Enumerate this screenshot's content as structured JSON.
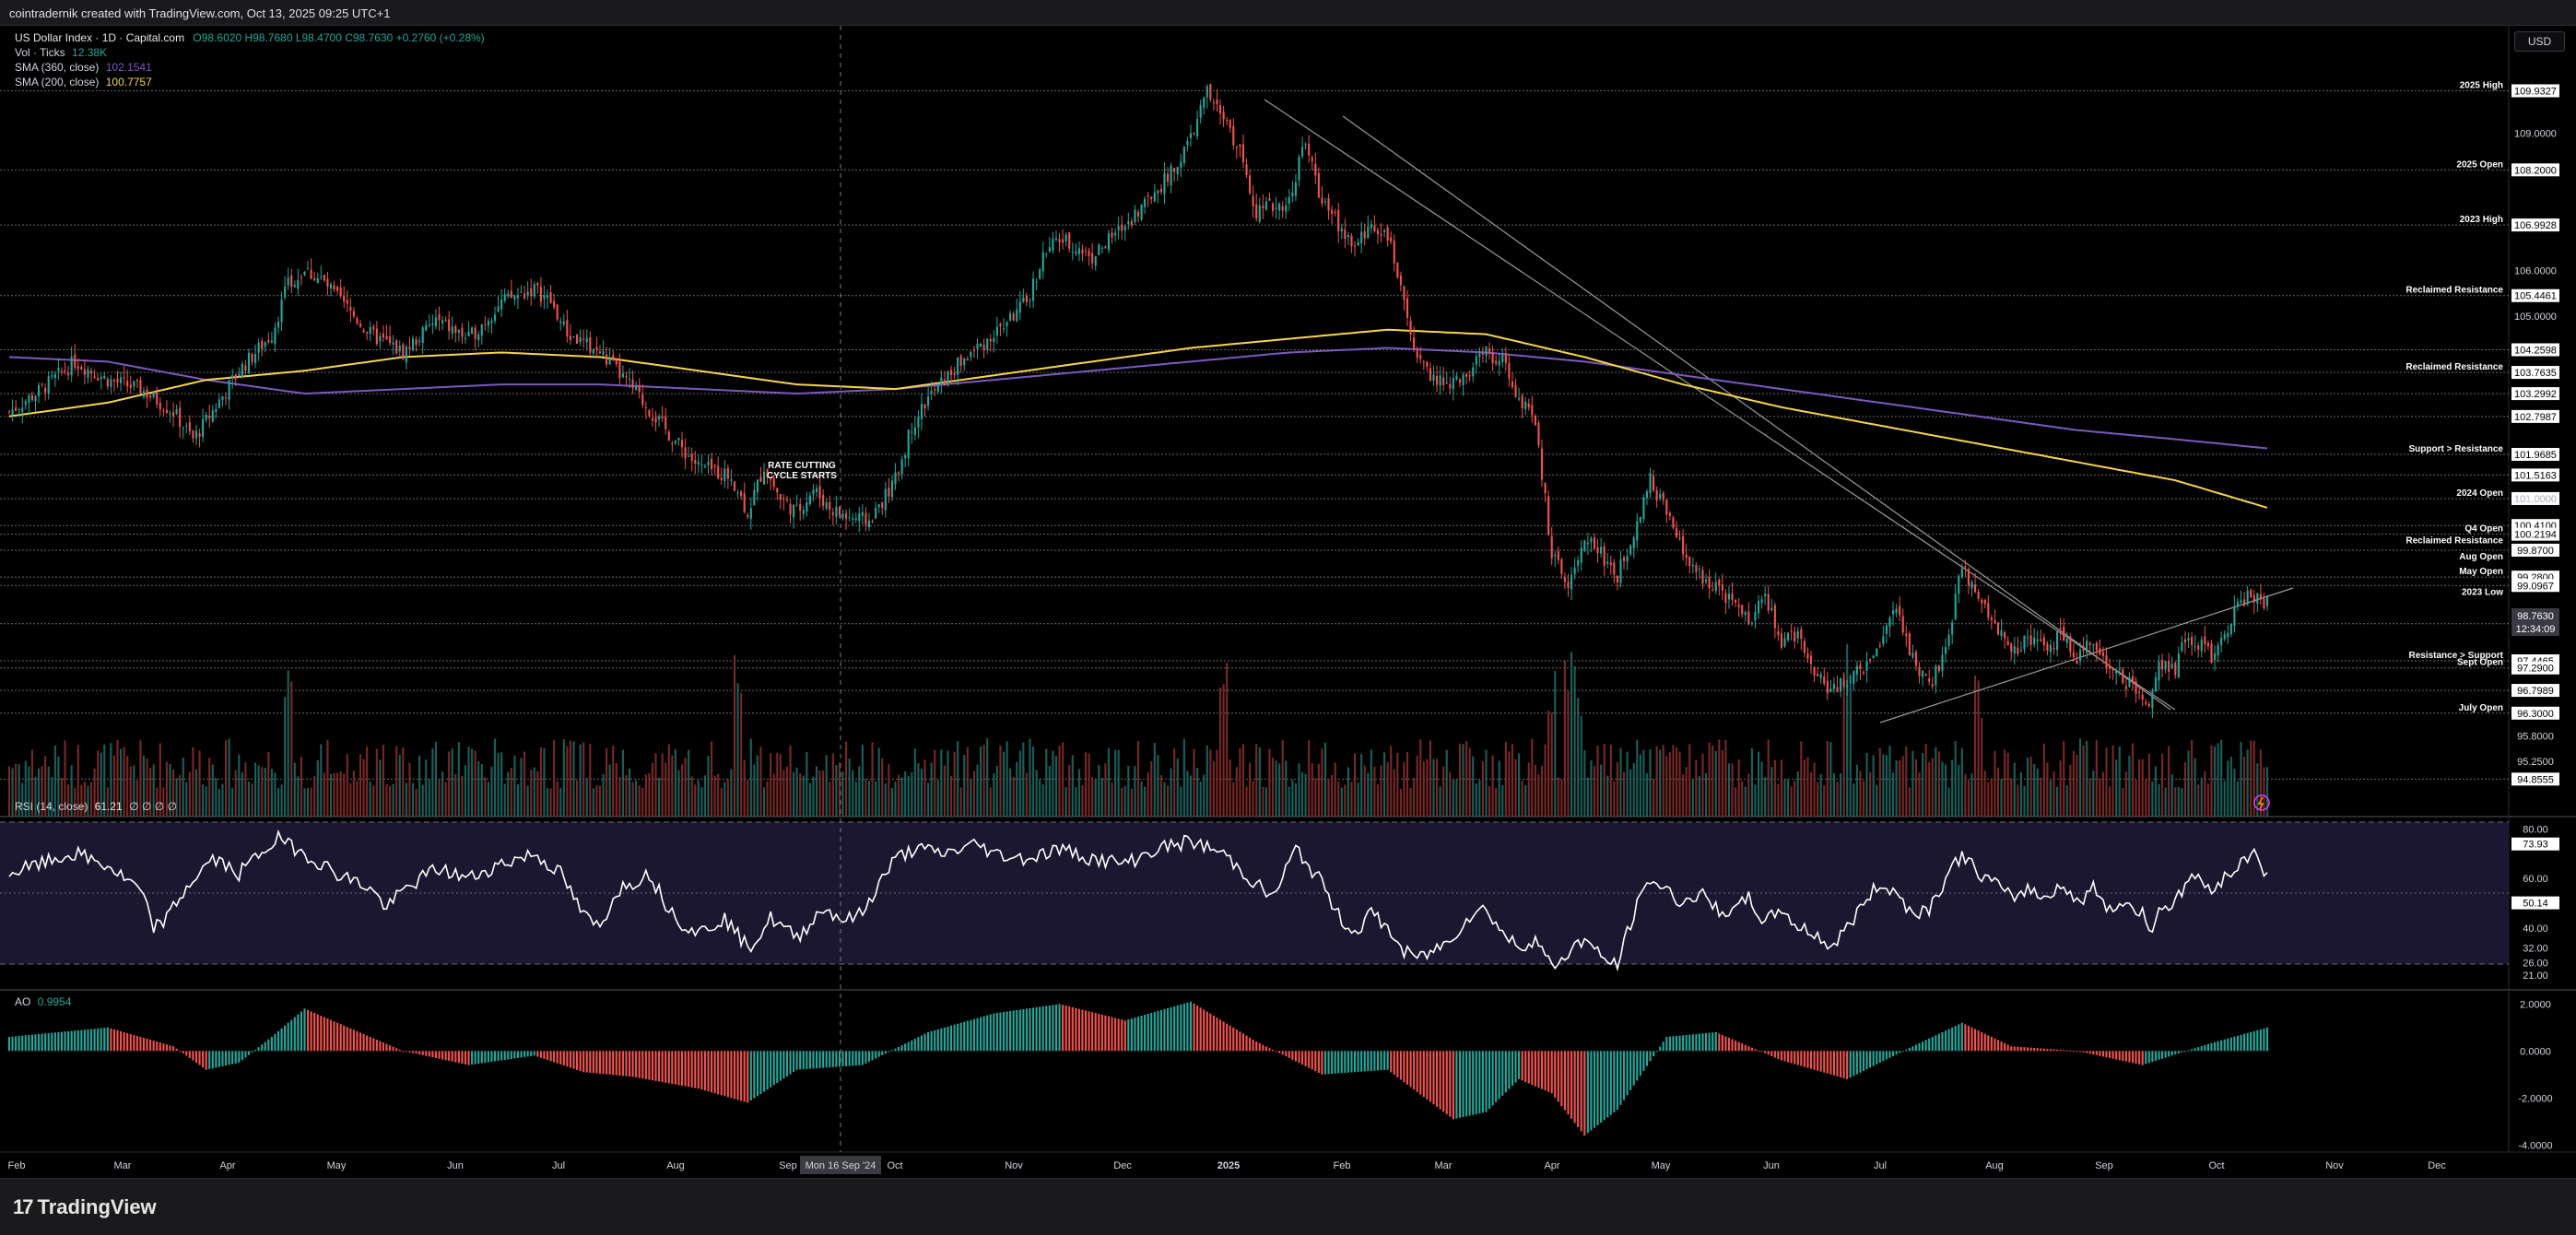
{
  "header": {
    "credit": "cointradernik created with TradingView.com, Oct 13, 2025 09:25 UTC+1"
  },
  "legend": {
    "symbol": "US Dollar Index · 1D · Capital.com",
    "ohlc": "O98.6020 H98.7680 L98.4700 C98.7630 +0.2760 (+0.28%)",
    "volume_label": "Vol · Ticks",
    "volume_value": "12.38K",
    "sma360_label": "SMA (360, close)",
    "sma360_value": "102.1541",
    "sma200_label": "SMA (200, close)",
    "sma200_value": "100.7757",
    "rsi_label": "RSI (14, close)",
    "rsi_value": "61.21",
    "rsi_extra": "∅ ∅ ∅ ∅",
    "ao_label": "AO",
    "ao_value": "0.9954"
  },
  "currency_button": "USD",
  "crosshair_label": "Mon 16 Sep '24",
  "footer": {
    "brand": "TradingView"
  },
  "colors": {
    "up": "#26a69a",
    "down": "#ef5350",
    "sma200": "#f6d54a",
    "sma360": "#7e57c2",
    "rsi_band": "#1b1730",
    "tag_bg": "#ffffff",
    "tag_text": "#000000"
  },
  "chart_data": {
    "type": "candlestick",
    "symbol": "US Dollar Index",
    "timeframe": "1D",
    "x_axis_labels": [
      "Feb",
      "Mar",
      "Apr",
      "May",
      "Jun",
      "Jul",
      "Aug",
      "Sep",
      "Oct",
      "Nov",
      "Dec",
      "2025",
      "Feb",
      "Mar",
      "Apr",
      "May",
      "Jun",
      "Jul",
      "Aug",
      "Sep",
      "Oct",
      "Nov",
      "Dec"
    ],
    "price_axis": {
      "ylim": [
        94.6,
        110.75
      ],
      "ticks": [
        "109.0000",
        "106.0000",
        "105.0000",
        "101.0000",
        "95.8000",
        "95.2500"
      ]
    },
    "price_levels": [
      {
        "label": "2025 High",
        "value": "109.9327"
      },
      {
        "label": "2025 Open",
        "value": "108.2000"
      },
      {
        "label": "2023 High",
        "value": "106.9928"
      },
      {
        "label": "Reclaimed Resistance",
        "value": "105.4461"
      },
      {
        "label": "",
        "value": "104.2598"
      },
      {
        "label": "Reclaimed Resistance",
        "value": "103.7635"
      },
      {
        "label": "",
        "value": "103.2992"
      },
      {
        "label": "",
        "value": "102.7987"
      },
      {
        "label": "Support > Resistance",
        "value": "101.9685"
      },
      {
        "label": "",
        "value": "101.5163"
      },
      {
        "label": "2024 Open",
        "value": "101.0000"
      },
      {
        "label": "",
        "value": "100.4100"
      },
      {
        "label": "Q4 Open",
        "value": "100.2194"
      },
      {
        "label": "Reclaimed Resistance",
        "value": ""
      },
      {
        "label": "",
        "value": "99.8700"
      },
      {
        "label": "Aug Open",
        "value": ""
      },
      {
        "label": "May Open",
        "value": "99.2800"
      },
      {
        "label": "",
        "value": "99.0967"
      },
      {
        "label": "2023 Low",
        "value": ""
      },
      {
        "label": "",
        "value": "98.2579"
      },
      {
        "label": "Resistance > Support",
        "value": "97.4465"
      },
      {
        "label": "Sept Open",
        "value": "97.2900"
      },
      {
        "label": "",
        "value": "96.7989"
      },
      {
        "label": "July Open",
        "value": "96.3000"
      },
      {
        "label": "",
        "value": "94.8555"
      }
    ],
    "last_price": "98.7630",
    "last_price_countdown": "12:34:09",
    "annotation": "RATE CUTTING\nCYCLE STARTS",
    "indicators": {
      "sma200_last": 100.7757,
      "sma360_last": 102.1541,
      "rsi": {
        "period": 14,
        "last": 61.21,
        "upper": 73.93,
        "mid": 50.14,
        "ticks": [
          "80.00",
          "60.00",
          "40.00",
          "32.00",
          "26.00",
          "21.00"
        ]
      },
      "ao": {
        "last": 0.9954,
        "ticks": [
          "2.0000",
          "0.0000",
          "-2.0000",
          "-4.0000"
        ]
      }
    },
    "price_path": [
      [
        0,
        102.9
      ],
      [
        10,
        103.4
      ],
      [
        20,
        104.0
      ],
      [
        30,
        103.6
      ],
      [
        40,
        103.4
      ],
      [
        50,
        102.9
      ],
      [
        56,
        102.3
      ],
      [
        60,
        102.7
      ],
      [
        70,
        103.8
      ],
      [
        80,
        104.6
      ],
      [
        85,
        105.7
      ],
      [
        90,
        106.0
      ],
      [
        95,
        105.8
      ],
      [
        100,
        105.4
      ],
      [
        110,
        104.6
      ],
      [
        120,
        104.2
      ],
      [
        130,
        104.9
      ],
      [
        140,
        104.5
      ],
      [
        150,
        105.3
      ],
      [
        160,
        105.6
      ],
      [
        165,
        105.3
      ],
      [
        170,
        104.6
      ],
      [
        180,
        104.2
      ],
      [
        190,
        103.4
      ],
      [
        200,
        102.5
      ],
      [
        210,
        101.7
      ],
      [
        220,
        101.5
      ],
      [
        225,
        100.7
      ],
      [
        230,
        101.7
      ],
      [
        235,
        101.0
      ],
      [
        240,
        100.7
      ],
      [
        245,
        101.2
      ],
      [
        250,
        100.8
      ],
      [
        255,
        100.6
      ],
      [
        262,
        100.5
      ],
      [
        270,
        101.4
      ],
      [
        275,
        102.6
      ],
      [
        280,
        103.2
      ],
      [
        290,
        104.0
      ],
      [
        300,
        104.6
      ],
      [
        310,
        105.3
      ],
      [
        315,
        106.3
      ],
      [
        320,
        106.7
      ],
      [
        330,
        106.3
      ],
      [
        340,
        107.0
      ],
      [
        350,
        107.8
      ],
      [
        355,
        108.2
      ],
      [
        360,
        108.9
      ],
      [
        365,
        109.9
      ],
      [
        370,
        109.3
      ],
      [
        375,
        108.6
      ],
      [
        380,
        107.3
      ],
      [
        390,
        107.5
      ],
      [
        393,
        108.4
      ],
      [
        395,
        108.8
      ],
      [
        400,
        107.5
      ],
      [
        405,
        107.0
      ],
      [
        410,
        106.5
      ],
      [
        415,
        107.0
      ],
      [
        420,
        106.8
      ],
      [
        425,
        105.2
      ],
      [
        430,
        103.9
      ],
      [
        435,
        103.6
      ],
      [
        440,
        103.5
      ],
      [
        445,
        103.8
      ],
      [
        450,
        104.2
      ],
      [
        455,
        104.0
      ],
      [
        460,
        103.2
      ],
      [
        465,
        102.6
      ],
      [
        468,
        101.0
      ],
      [
        470,
        99.7
      ],
      [
        475,
        99.2
      ],
      [
        480,
        100.2
      ],
      [
        485,
        99.8
      ],
      [
        490,
        99.3
      ],
      [
        495,
        100.3
      ],
      [
        500,
        101.4
      ],
      [
        505,
        100.7
      ],
      [
        510,
        99.8
      ],
      [
        515,
        99.3
      ],
      [
        520,
        99.1
      ],
      [
        525,
        98.7
      ],
      [
        530,
        98.3
      ],
      [
        535,
        98.9
      ],
      [
        540,
        97.8
      ],
      [
        545,
        98.1
      ],
      [
        550,
        97.2
      ],
      [
        555,
        96.8
      ],
      [
        560,
        97.0
      ],
      [
        565,
        97.3
      ],
      [
        570,
        97.8
      ],
      [
        575,
        98.6
      ],
      [
        580,
        97.5
      ],
      [
        585,
        96.9
      ],
      [
        590,
        97.6
      ],
      [
        595,
        99.6
      ],
      [
        600,
        98.7
      ],
      [
        605,
        98.3
      ],
      [
        610,
        97.6
      ],
      [
        615,
        98.0
      ],
      [
        620,
        97.7
      ],
      [
        625,
        98.0
      ],
      [
        630,
        97.5
      ],
      [
        635,
        97.9
      ],
      [
        640,
        97.3
      ],
      [
        645,
        97.0
      ],
      [
        650,
        96.7
      ],
      [
        652,
        96.4
      ],
      [
        655,
        97.4
      ],
      [
        660,
        97.2
      ],
      [
        663,
        98.0
      ],
      [
        668,
        97.8
      ],
      [
        672,
        97.5
      ],
      [
        676,
        98.2
      ],
      [
        680,
        98.8
      ],
      [
        685,
        98.9
      ],
      [
        688,
        98.7
      ]
    ],
    "sma200_path": [
      [
        0,
        102.8
      ],
      [
        30,
        103.1
      ],
      [
        60,
        103.6
      ],
      [
        90,
        103.8
      ],
      [
        120,
        104.1
      ],
      [
        150,
        104.2
      ],
      [
        180,
        104.1
      ],
      [
        210,
        103.8
      ],
      [
        240,
        103.5
      ],
      [
        270,
        103.4
      ],
      [
        300,
        103.7
      ],
      [
        330,
        104.0
      ],
      [
        360,
        104.3
      ],
      [
        390,
        104.5
      ],
      [
        420,
        104.7
      ],
      [
        450,
        104.6
      ],
      [
        480,
        104.1
      ],
      [
        510,
        103.5
      ],
      [
        540,
        103.0
      ],
      [
        570,
        102.6
      ],
      [
        600,
        102.2
      ],
      [
        630,
        101.8
      ],
      [
        660,
        101.4
      ],
      [
        688,
        100.8
      ]
    ],
    "sma360_path": [
      [
        0,
        104.1
      ],
      [
        30,
        104.0
      ],
      [
        60,
        103.6
      ],
      [
        90,
        103.3
      ],
      [
        120,
        103.4
      ],
      [
        150,
        103.5
      ],
      [
        180,
        103.5
      ],
      [
        210,
        103.4
      ],
      [
        240,
        103.3
      ],
      [
        270,
        103.4
      ],
      [
        300,
        103.6
      ],
      [
        330,
        103.8
      ],
      [
        360,
        104.0
      ],
      [
        390,
        104.2
      ],
      [
        420,
        104.3
      ],
      [
        450,
        104.2
      ],
      [
        480,
        104.0
      ],
      [
        510,
        103.7
      ],
      [
        540,
        103.4
      ],
      [
        570,
        103.1
      ],
      [
        600,
        102.8
      ],
      [
        630,
        102.5
      ],
      [
        660,
        102.3
      ],
      [
        688,
        102.1
      ]
    ],
    "rsi_path": [
      [
        0,
        62
      ],
      [
        10,
        66
      ],
      [
        20,
        70
      ],
      [
        30,
        65
      ],
      [
        40,
        55
      ],
      [
        44,
        40
      ],
      [
        48,
        44
      ],
      [
        55,
        58
      ],
      [
        62,
        68
      ],
      [
        70,
        62
      ],
      [
        78,
        72
      ],
      [
        82,
        76
      ],
      [
        90,
        70
      ],
      [
        100,
        62
      ],
      [
        110,
        56
      ],
      [
        115,
        48
      ],
      [
        120,
        55
      ],
      [
        130,
        64
      ],
      [
        140,
        60
      ],
      [
        150,
        66
      ],
      [
        160,
        70
      ],
      [
        168,
        62
      ],
      [
        175,
        45
      ],
      [
        180,
        40
      ],
      [
        185,
        55
      ],
      [
        195,
        62
      ],
      [
        200,
        50
      ],
      [
        205,
        42
      ],
      [
        210,
        38
      ],
      [
        218,
        44
      ],
      [
        225,
        32
      ],
      [
        228,
        36
      ],
      [
        232,
        44
      ],
      [
        240,
        36
      ],
      [
        248,
        48
      ],
      [
        255,
        43
      ],
      [
        260,
        46
      ],
      [
        265,
        58
      ],
      [
        270,
        68
      ],
      [
        276,
        72
      ],
      [
        285,
        70
      ],
      [
        295,
        74
      ],
      [
        300,
        70
      ],
      [
        310,
        68
      ],
      [
        320,
        72
      ],
      [
        330,
        68
      ],
      [
        340,
        66
      ],
      [
        350,
        72
      ],
      [
        360,
        75
      ],
      [
        370,
        70
      ],
      [
        378,
        60
      ],
      [
        385,
        52
      ],
      [
        392,
        72
      ],
      [
        400,
        58
      ],
      [
        405,
        45
      ],
      [
        410,
        38
      ],
      [
        415,
        46
      ],
      [
        420,
        40
      ],
      [
        425,
        30
      ],
      [
        430,
        28
      ],
      [
        438,
        34
      ],
      [
        445,
        45
      ],
      [
        450,
        48
      ],
      [
        455,
        38
      ],
      [
        460,
        32
      ],
      [
        465,
        36
      ],
      [
        470,
        24
      ],
      [
        475,
        30
      ],
      [
        480,
        36
      ],
      [
        485,
        28
      ],
      [
        490,
        25
      ],
      [
        495,
        46
      ],
      [
        500,
        60
      ],
      [
        505,
        55
      ],
      [
        510,
        50
      ],
      [
        515,
        54
      ],
      [
        520,
        48
      ],
      [
        525,
        46
      ],
      [
        530,
        52
      ],
      [
        535,
        42
      ],
      [
        540,
        48
      ],
      [
        545,
        40
      ],
      [
        550,
        38
      ],
      [
        555,
        32
      ],
      [
        560,
        40
      ],
      [
        565,
        50
      ],
      [
        570,
        58
      ],
      [
        575,
        54
      ],
      [
        580,
        46
      ],
      [
        585,
        48
      ],
      [
        590,
        60
      ],
      [
        595,
        70
      ],
      [
        600,
        62
      ],
      [
        605,
        58
      ],
      [
        610,
        52
      ],
      [
        615,
        56
      ],
      [
        620,
        52
      ],
      [
        625,
        58
      ],
      [
        630,
        50
      ],
      [
        635,
        56
      ],
      [
        640,
        48
      ],
      [
        645,
        50
      ],
      [
        650,
        46
      ],
      [
        652,
        38
      ],
      [
        655,
        48
      ],
      [
        660,
        50
      ],
      [
        665,
        62
      ],
      [
        670,
        56
      ],
      [
        675,
        60
      ],
      [
        680,
        66
      ],
      [
        684,
        72
      ],
      [
        688,
        61
      ]
    ],
    "ao_path": [
      [
        0,
        0.6
      ],
      [
        30,
        1.0
      ],
      [
        50,
        0.2
      ],
      [
        60,
        -0.8
      ],
      [
        70,
        -0.5
      ],
      [
        80,
        0.6
      ],
      [
        90,
        1.8
      ],
      [
        100,
        1.2
      ],
      [
        120,
        0.0
      ],
      [
        140,
        -0.6
      ],
      [
        160,
        -0.2
      ],
      [
        175,
        -0.9
      ],
      [
        190,
        -1.1
      ],
      [
        210,
        -1.6
      ],
      [
        225,
        -2.2
      ],
      [
        240,
        -0.8
      ],
      [
        260,
        -0.6
      ],
      [
        280,
        0.8
      ],
      [
        300,
        1.6
      ],
      [
        320,
        2.0
      ],
      [
        340,
        1.3
      ],
      [
        360,
        2.1
      ],
      [
        380,
        0.4
      ],
      [
        400,
        -1.0
      ],
      [
        420,
        -0.8
      ],
      [
        440,
        -2.9
      ],
      [
        450,
        -2.6
      ],
      [
        460,
        -1.2
      ],
      [
        470,
        -1.8
      ],
      [
        480,
        -3.6
      ],
      [
        490,
        -2.5
      ],
      [
        505,
        0.6
      ],
      [
        520,
        0.8
      ],
      [
        540,
        -0.4
      ],
      [
        560,
        -1.2
      ],
      [
        580,
        0.2
      ],
      [
        595,
        1.2
      ],
      [
        610,
        0.2
      ],
      [
        630,
        0.0
      ],
      [
        650,
        -0.6
      ],
      [
        670,
        0.3
      ],
      [
        688,
        1.0
      ]
    ]
  }
}
